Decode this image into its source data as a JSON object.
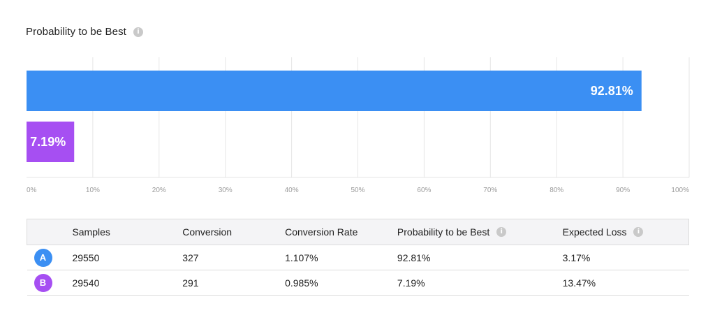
{
  "title": "Probability to be Best",
  "icons": {
    "info": "info-icon"
  },
  "colors": {
    "variant_a": "#3b8ff3",
    "variant_b": "#a64ff2",
    "grid": "#e6e6e6",
    "tick": "#9a9a9a"
  },
  "chart_data": {
    "type": "bar",
    "orientation": "horizontal",
    "title": "Probability to be Best",
    "categories": [
      "A",
      "B"
    ],
    "values": [
      92.81,
      7.19
    ],
    "data_labels": [
      "92.81%",
      "7.19%"
    ],
    "xlim": [
      0,
      100
    ],
    "ticks": [
      "0%",
      "10%",
      "20%",
      "30%",
      "40%",
      "50%",
      "60%",
      "70%",
      "80%",
      "90%",
      "100%"
    ],
    "grid": true,
    "colors": [
      "#3b8ff3",
      "#a64ff2"
    ]
  },
  "table": {
    "headers": [
      "",
      "Samples",
      "Conversion",
      "Conversion Rate",
      "Probability to be Best",
      "Expected Loss"
    ],
    "rows": [
      {
        "variant": "A",
        "samples": "29550",
        "conversion": "327",
        "rate": "1.107%",
        "probability": "92.81%",
        "loss": "3.17%"
      },
      {
        "variant": "B",
        "samples": "29540",
        "conversion": "291",
        "rate": "0.985%",
        "probability": "7.19%",
        "loss": "13.47%"
      }
    ]
  }
}
